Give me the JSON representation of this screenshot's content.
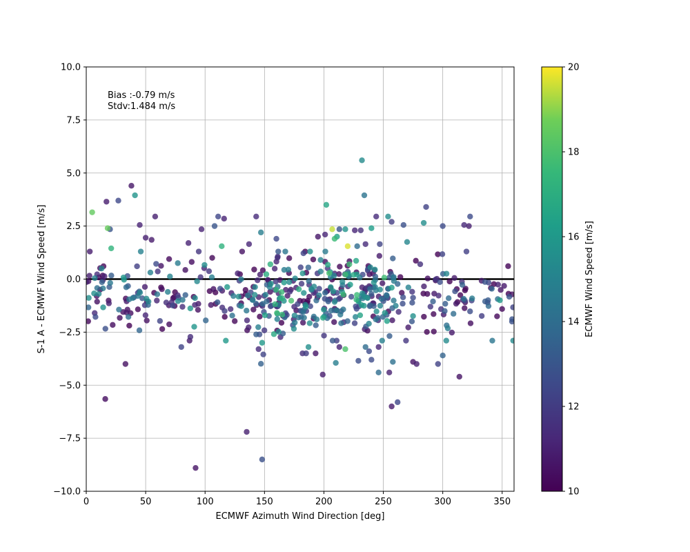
{
  "chart_data": {
    "type": "scatter",
    "title": "",
    "xlabel": "ECMWF Azimuth Wind Direction [deg]",
    "ylabel": "S-1 A - ECMWF Wind Speed [m/s]",
    "xlim": [
      0,
      360
    ],
    "ylim": [
      -10,
      10
    ],
    "x_ticks": [
      0,
      50,
      100,
      150,
      200,
      250,
      300,
      350
    ],
    "y_ticks": [
      -10.0,
      -7.5,
      -5.0,
      -2.5,
      0.0,
      2.5,
      5.0,
      7.5,
      10.0
    ],
    "y_tick_labels": [
      "−10.0",
      "−7.5",
      "−5.0",
      "−2.5",
      "0.0",
      "2.5",
      "5.0",
      "7.5",
      "10.0"
    ],
    "grid": true,
    "zero_line": 0,
    "annotations": [
      "Bias :-0.79 m/s",
      "Stdv:1.484 m/s"
    ],
    "colorbar": {
      "label": "ECMWF Wind Speed [m/s]",
      "range": [
        10,
        20
      ],
      "ticks": [
        10,
        12,
        14,
        16,
        18,
        20
      ],
      "colormap": "viridis"
    },
    "points": [
      [
        16,
        -5.65,
        10.4
      ],
      [
        92,
        -8.9,
        10.6
      ],
      [
        135,
        -7.2,
        11.0
      ],
      [
        148,
        -8.5,
        12.8
      ],
      [
        257,
        -6.0,
        10.8
      ],
      [
        262,
        -5.8,
        12.4
      ],
      [
        314,
        -4.6,
        10.6
      ],
      [
        199,
        -4.5,
        10.9
      ],
      [
        255,
        -4.4,
        11.0
      ],
      [
        246,
        -4.4,
        14.0
      ],
      [
        33,
        -4.0,
        10.5
      ],
      [
        147,
        -3.99,
        13.5
      ],
      [
        210,
        -3.95,
        14.8
      ],
      [
        258,
        -3.9,
        14.2
      ],
      [
        275,
        -3.9,
        10.6
      ],
      [
        278,
        -4.0,
        11.0
      ],
      [
        296,
        -4.0,
        12.2
      ],
      [
        240,
        -3.8,
        12.6
      ],
      [
        229,
        -3.85,
        12.7
      ],
      [
        145,
        -3.3,
        11.4
      ],
      [
        149,
        -3.55,
        12.3
      ],
      [
        182,
        -3.5,
        11.5
      ],
      [
        185,
        -3.5,
        12.0
      ],
      [
        193,
        -3.5,
        10.7
      ],
      [
        187,
        -3.2,
        15.6
      ],
      [
        213,
        -3.2,
        11.1
      ],
      [
        218,
        -3.3,
        18.0
      ],
      [
        238,
        -3.4,
        12.6
      ],
      [
        80,
        -3.2,
        12.3
      ],
      [
        300,
        -3.6,
        13.6
      ],
      [
        148,
        -3.0,
        16.0
      ],
      [
        235,
        -3.2,
        14.0
      ],
      [
        246,
        -3.2,
        11.2
      ],
      [
        249,
        -2.9,
        14.9
      ],
      [
        5,
        3.15,
        18.5
      ],
      [
        17,
        3.65,
        10.9
      ],
      [
        27,
        3.7,
        12.5
      ],
      [
        38,
        4.4,
        10.7
      ],
      [
        41,
        3.95,
        15.8
      ],
      [
        58,
        2.95,
        11.0
      ],
      [
        45,
        2.55,
        11.1
      ],
      [
        18,
        2.4,
        18.6
      ],
      [
        20,
        2.35,
        13.0
      ],
      [
        111,
        2.95,
        12.4
      ],
      [
        116,
        2.85,
        11.1
      ],
      [
        143,
        2.95,
        11.4
      ],
      [
        147,
        2.2,
        14.8
      ],
      [
        97,
        2.35,
        11.1
      ],
      [
        108,
        2.5,
        13.0
      ],
      [
        232,
        5.6,
        15.4
      ],
      [
        234,
        3.95,
        14.3
      ],
      [
        202,
        3.5,
        16.6
      ],
      [
        244,
        2.95,
        11.4
      ],
      [
        254,
        2.95,
        15.5
      ],
      [
        286,
        3.4,
        12.2
      ],
      [
        323,
        2.95,
        12.6
      ],
      [
        207,
        2.35,
        19.5
      ],
      [
        213,
        2.35,
        13.0
      ],
      [
        218,
        2.35,
        15.8
      ],
      [
        226,
        2.3,
        11.2
      ],
      [
        231,
        2.3,
        11.5
      ],
      [
        240,
        2.4,
        16.2
      ],
      [
        257,
        2.7,
        12.0
      ],
      [
        267,
        2.55,
        12.8
      ],
      [
        284,
        2.65,
        15.5
      ],
      [
        300,
        2.5,
        12.6
      ],
      [
        318,
        2.55,
        11.3
      ],
      [
        322,
        2.5,
        11.0
      ],
      [
        209,
        1.9,
        17.6
      ],
      [
        211,
        2.0,
        16.4
      ],
      [
        220,
        1.55,
        19.7
      ],
      [
        228,
        1.55,
        14.0
      ],
      [
        235,
        1.65,
        11.4
      ],
      [
        247,
        1.65,
        12.3
      ],
      [
        270,
        1.75,
        15.2
      ],
      [
        160,
        1.9,
        12.5
      ],
      [
        195,
        2.0,
        10.7
      ],
      [
        201,
        2.1,
        11.2
      ],
      [
        114,
        1.55,
        17.2
      ],
      [
        137,
        1.65,
        11.2
      ],
      [
        86,
        1.7,
        11.1
      ],
      [
        55,
        1.85,
        10.8
      ],
      [
        50,
        1.95,
        11.0
      ],
      [
        21,
        1.45,
        17.3
      ],
      [
        3,
        1.3,
        10.9
      ]
    ]
  }
}
